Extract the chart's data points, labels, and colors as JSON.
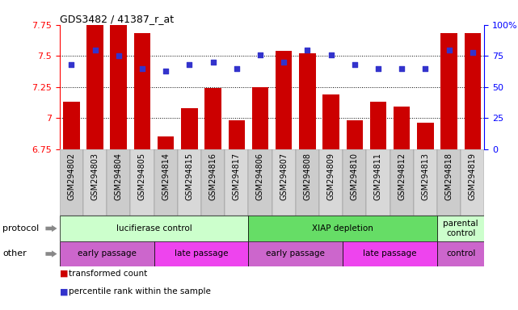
{
  "title": "GDS3482 / 41387_r_at",
  "samples": [
    "GSM294802",
    "GSM294803",
    "GSM294804",
    "GSM294805",
    "GSM294814",
    "GSM294815",
    "GSM294816",
    "GSM294817",
    "GSM294806",
    "GSM294807",
    "GSM294808",
    "GSM294809",
    "GSM294810",
    "GSM294811",
    "GSM294812",
    "GSM294813",
    "GSM294818",
    "GSM294819"
  ],
  "bar_values": [
    7.13,
    7.75,
    7.75,
    7.68,
    6.85,
    7.08,
    7.24,
    6.98,
    7.25,
    7.54,
    7.52,
    7.19,
    6.98,
    7.13,
    7.09,
    6.96,
    7.68,
    7.68
  ],
  "dot_values": [
    68,
    80,
    75,
    65,
    63,
    68,
    70,
    65,
    76,
    70,
    80,
    76,
    68,
    65,
    65,
    65,
    80,
    78
  ],
  "ylim_left": [
    6.75,
    7.75
  ],
  "ylim_right": [
    0,
    100
  ],
  "yticks_left": [
    6.75,
    7.0,
    7.25,
    7.5,
    7.75
  ],
  "yticks_right": [
    0,
    25,
    50,
    75,
    100
  ],
  "ytick_labels_left": [
    "6.75",
    "7",
    "7.25",
    "7.5",
    "7.75"
  ],
  "ytick_labels_right": [
    "0",
    "25",
    "50",
    "75",
    "100%"
  ],
  "hlines": [
    7.0,
    7.25,
    7.5
  ],
  "bar_color": "#cc0000",
  "dot_color": "#3333cc",
  "protocol_groups": [
    {
      "label": "lucifierase control",
      "start": 0,
      "end": 8,
      "color": "#ccffcc"
    },
    {
      "label": "XIAP depletion",
      "start": 8,
      "end": 16,
      "color": "#66dd66"
    },
    {
      "label": "parental\ncontrol",
      "start": 16,
      "end": 18,
      "color": "#ccffcc"
    }
  ],
  "other_groups": [
    {
      "label": "early passage",
      "start": 0,
      "end": 4,
      "color": "#cc66cc"
    },
    {
      "label": "late passage",
      "start": 4,
      "end": 8,
      "color": "#ee44ee"
    },
    {
      "label": "early passage",
      "start": 8,
      "end": 12,
      "color": "#cc66cc"
    },
    {
      "label": "late passage",
      "start": 12,
      "end": 16,
      "color": "#ee44ee"
    },
    {
      "label": "control",
      "start": 16,
      "end": 18,
      "color": "#cc66cc"
    }
  ],
  "legend_items": [
    {
      "label": "transformed count",
      "color": "#cc0000"
    },
    {
      "label": "percentile rank within the sample",
      "color": "#3333cc"
    }
  ],
  "background_color": "#ffffff",
  "xtick_bg_color": "#cccccc",
  "xtick_fontsize": 7,
  "bar_width": 0.7
}
